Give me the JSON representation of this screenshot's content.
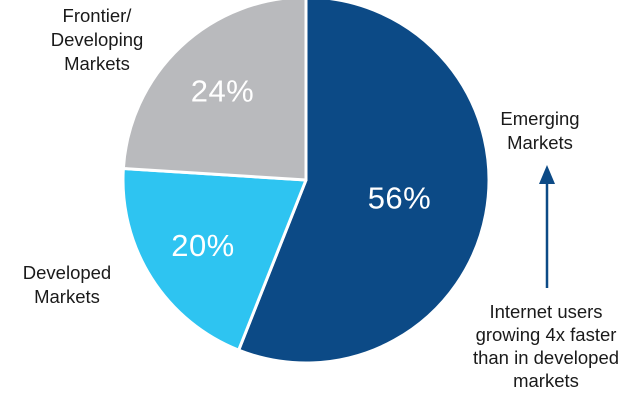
{
  "chart_data": {
    "type": "pie",
    "slices": [
      {
        "label": "Emerging\nMarkets",
        "value": 56,
        "value_label": "56%",
        "color": "#0c4a86"
      },
      {
        "label": "Developed\nMarkets",
        "value": 20,
        "value_label": "20%",
        "color": "#2ec4f1"
      },
      {
        "label": "Frontier/\nDeveloping\nMarkets",
        "value": 24,
        "value_label": "24%",
        "color": "#b9babd"
      }
    ],
    "start_angle": "12 o'clock",
    "direction": "clockwise",
    "annotation": {
      "text": "Internet users\ngrowing 4x faster\nthan in developed\nmarkets",
      "arrow": "up",
      "arrow_color": "#0c4a86"
    }
  }
}
